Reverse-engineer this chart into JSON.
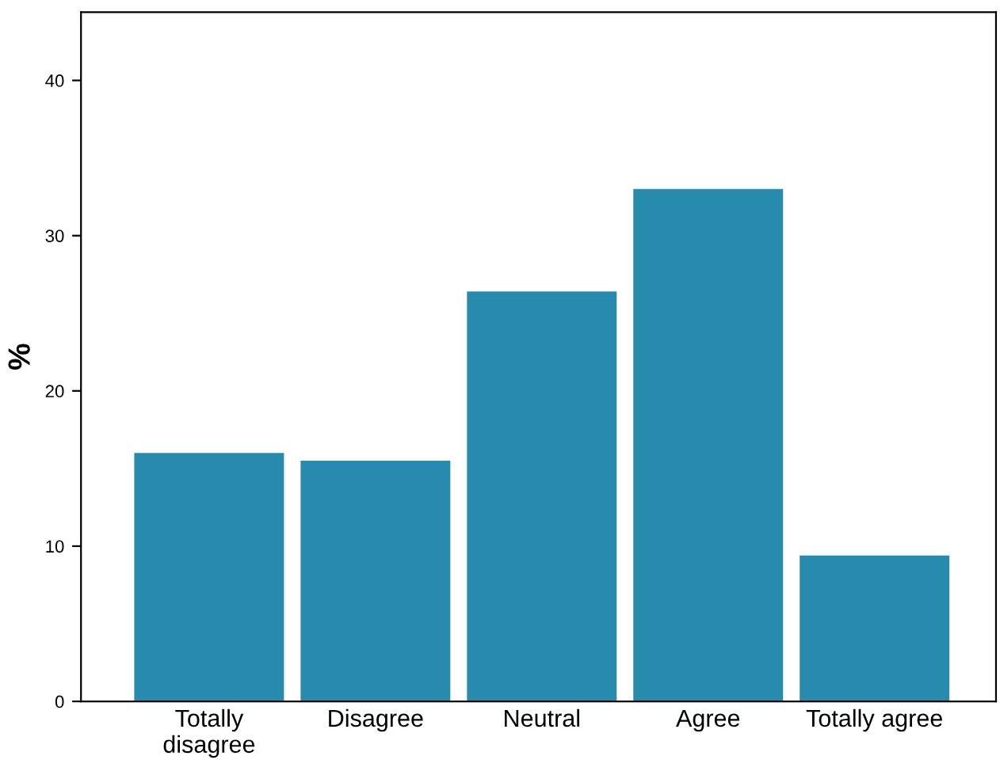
{
  "chart_data": {
    "type": "bar",
    "ylabel": "%",
    "categories": [
      "Totally\ndisagree",
      "Disagree",
      "Neutral",
      "Agree",
      "Totally agree"
    ],
    "values": [
      16.0,
      15.5,
      26.4,
      33.0,
      9.4
    ],
    "color": "#268bad",
    "ylim": [
      0,
      44.4
    ],
    "yticks": [
      0,
      10,
      20,
      30,
      40
    ],
    "grid": false,
    "legend": false
  }
}
